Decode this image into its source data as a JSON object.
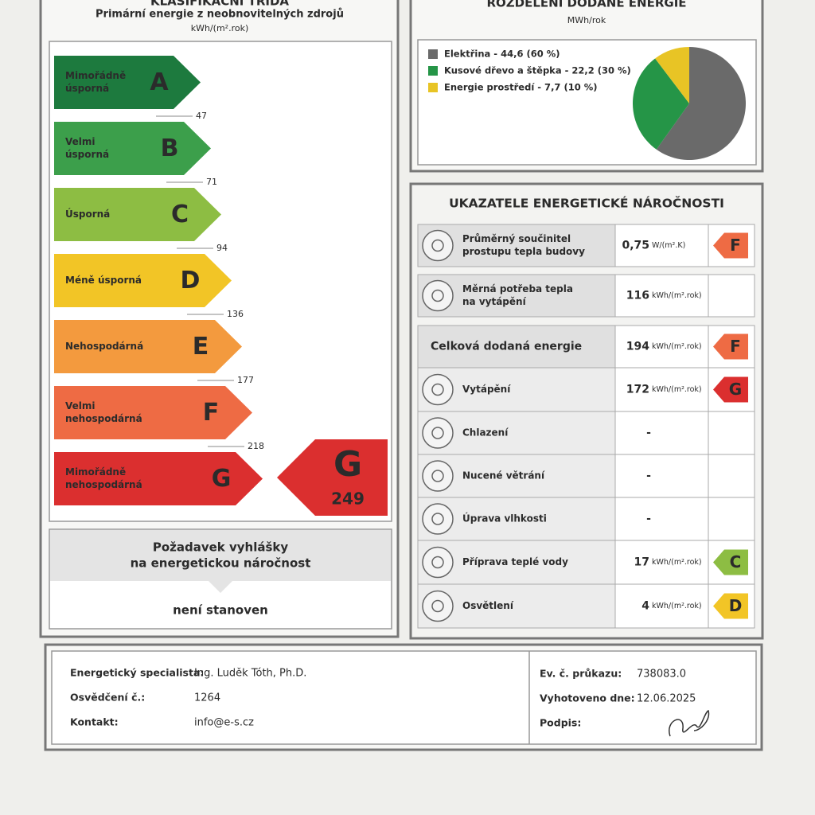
{
  "left": {
    "title": "KLASIFIKAČNÍ TŘÍDA",
    "subtitle": "Primární energie z neobnovitelných zdrojů",
    "unit": "kWh/(m².rok)",
    "classes": [
      {
        "letter": "A",
        "label": [
          "Mimořádně",
          "úsporná"
        ],
        "color": "#1d7a3e",
        "limit": 47
      },
      {
        "letter": "B",
        "label": [
          "Velmi",
          "úsporná"
        ],
        "color": "#3c9f4b",
        "limit": 71
      },
      {
        "letter": "C",
        "label": [
          "Úsporná"
        ],
        "color": "#8dbd43",
        "limit": 94
      },
      {
        "letter": "D",
        "label": [
          "Méně úsporná"
        ],
        "color": "#f2c526",
        "limit": 136
      },
      {
        "letter": "E",
        "label": [
          "Nehospodárná"
        ],
        "color": "#f39a3e",
        "limit": 177
      },
      {
        "letter": "F",
        "label": [
          "Velmi",
          "nehospodárná"
        ],
        "color": "#ee6b44",
        "limit": 218
      },
      {
        "letter": "G",
        "label": [
          "Mimořádně",
          "nehospodárná"
        ],
        "color": "#db2f2f"
      }
    ],
    "result": {
      "letter": "G",
      "value": 249
    },
    "requirement": {
      "title": [
        "Požadavek vyhlášky",
        "na energetickou náročnost"
      ],
      "value": "není stanoven"
    }
  },
  "distribution": {
    "title": "ROZDĚLENÍ DODANÉ ENERGIE",
    "unit": "MWh/rok",
    "chart_data": {
      "type": "pie",
      "items": [
        {
          "label": "Elektřina - 44,6 (60 %)",
          "value": 44.6,
          "color": "#6a6a6a"
        },
        {
          "label": "Kusové dřevo a štěpka - 22,2 (30 %)",
          "value": 22.2,
          "color": "#259547"
        },
        {
          "label": "Energie prostředí - 7,7 (10 %)",
          "value": 7.7,
          "color": "#e8c425"
        }
      ]
    }
  },
  "indicators": {
    "title": "UKAZATELE ENERGETICKÉ NÁROČNOSTI",
    "rows": [
      {
        "label": [
          "Průměrný součinitel",
          "prostupu tepla budovy"
        ],
        "value": "0,75",
        "unit": "W/(m².K)",
        "class": "F"
      },
      {
        "label": [
          "Měrná potřeba tepla",
          "na vytápění"
        ],
        "value": "116",
        "unit": "kWh/(m².rok)"
      },
      {
        "label": [
          "Celková dodaná energie"
        ],
        "value": "194",
        "unit": "kWh/(m².rok)",
        "class": "F"
      },
      {
        "label": [
          "Vytápění"
        ],
        "value": "172",
        "unit": "kWh/(m².rok)",
        "class": "G"
      },
      {
        "label": [
          "Chlazení"
        ],
        "value": "-"
      },
      {
        "label": [
          "Nucené větrání"
        ],
        "value": "-"
      },
      {
        "label": [
          "Úprava vlhkosti"
        ],
        "value": "-"
      },
      {
        "label": [
          "Příprava teplé vody"
        ],
        "value": "17",
        "unit": "kWh/(m².rok)",
        "class": "C"
      },
      {
        "label": [
          "Osvětlení"
        ],
        "value": "4",
        "unit": "kWh/(m².rok)",
        "class": "D"
      }
    ]
  },
  "footer": {
    "left": [
      {
        "label": "Energetický specialista:",
        "value": "Ing. Luděk Tóth, Ph.D."
      },
      {
        "label": "Osvědčení č.:",
        "value": "1264"
      },
      {
        "label": "Kontakt:",
        "value": "info@e-s.cz"
      }
    ],
    "right": [
      {
        "label": "Ev. č. průkazu:",
        "value": "738083.0"
      },
      {
        "label": "Vyhotoveno dne:",
        "value": "12.06.2025"
      },
      {
        "label": "Podpis:"
      }
    ]
  }
}
